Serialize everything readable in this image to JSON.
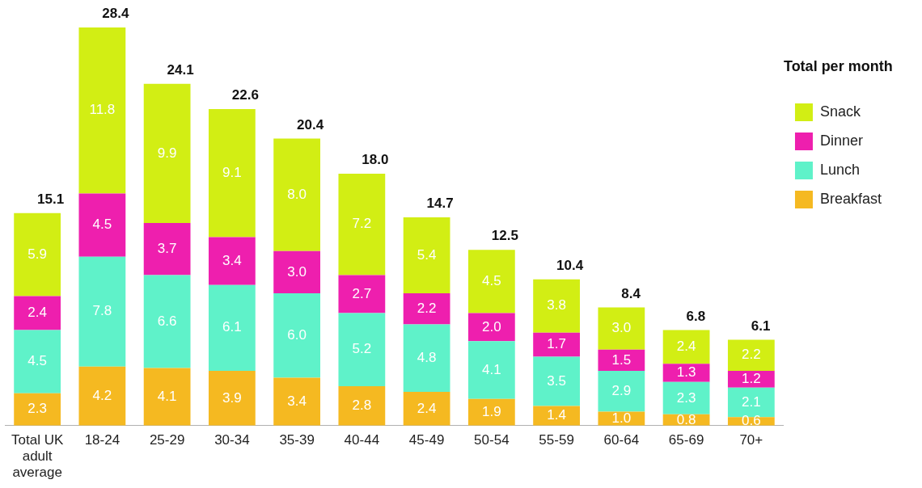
{
  "chart_data": {
    "type": "bar",
    "stacked": true,
    "legend": "top right",
    "legend_title": "Total per month",
    "grid": false,
    "categories": [
      "Total UK adult average",
      "18-24",
      "25-29",
      "30-34",
      "35-39",
      "40-44",
      "45-49",
      "50-54",
      "55-59",
      "60-64",
      "65-69",
      "70+"
    ],
    "series": [
      {
        "name": "Breakfast",
        "color": "#f5b921",
        "values": [
          2.3,
          4.2,
          4.1,
          3.9,
          3.4,
          2.8,
          2.4,
          1.9,
          1.4,
          1.0,
          0.8,
          0.6
        ],
        "value_labels": [
          "2.3",
          "4.2",
          "4.1",
          "3.9",
          "3.4",
          "2.8",
          "2.4",
          "1.9",
          "1.4",
          "1.0",
          "0.8",
          "0.6"
        ]
      },
      {
        "name": "Lunch",
        "color": "#5ff2c9",
        "values": [
          4.5,
          7.8,
          6.6,
          6.1,
          6.0,
          5.2,
          4.8,
          4.1,
          3.5,
          2.9,
          2.3,
          2.1
        ],
        "value_labels": [
          "4.5",
          "7.8",
          "6.6",
          "6.1",
          "6.0",
          "5.2",
          "4.8",
          "4.1",
          "3.5",
          "2.9",
          "2.3",
          "2.1"
        ]
      },
      {
        "name": "Dinner",
        "color": "#ee1fae",
        "values": [
          2.4,
          4.5,
          3.7,
          3.4,
          3.0,
          2.7,
          2.2,
          2.0,
          1.7,
          1.5,
          1.3,
          1.2
        ],
        "value_labels": [
          "2.4",
          "4.5",
          "3.7",
          "3.4",
          "3.0",
          "2.7",
          "2.2",
          "2.0",
          "1.7",
          "1.5",
          "1.3",
          "1.2"
        ]
      },
      {
        "name": "Snack",
        "color": "#d2ee14",
        "values": [
          5.9,
          11.8,
          9.9,
          9.1,
          8.0,
          7.2,
          5.4,
          4.5,
          3.8,
          3.0,
          2.4,
          2.2
        ],
        "value_labels": [
          "5.9",
          "11.8",
          "9.9",
          "9.1",
          "8.0",
          "7.2",
          "5.4",
          "4.5",
          "3.8",
          "3.0",
          "2.4",
          "2.2"
        ]
      }
    ],
    "totals": [
      "15.1",
      "28.4",
      "24.1",
      "22.6",
      "20.4",
      "18.0",
      "14.7",
      "12.5",
      "10.4",
      "8.4",
      "6.8",
      "6.1"
    ]
  }
}
